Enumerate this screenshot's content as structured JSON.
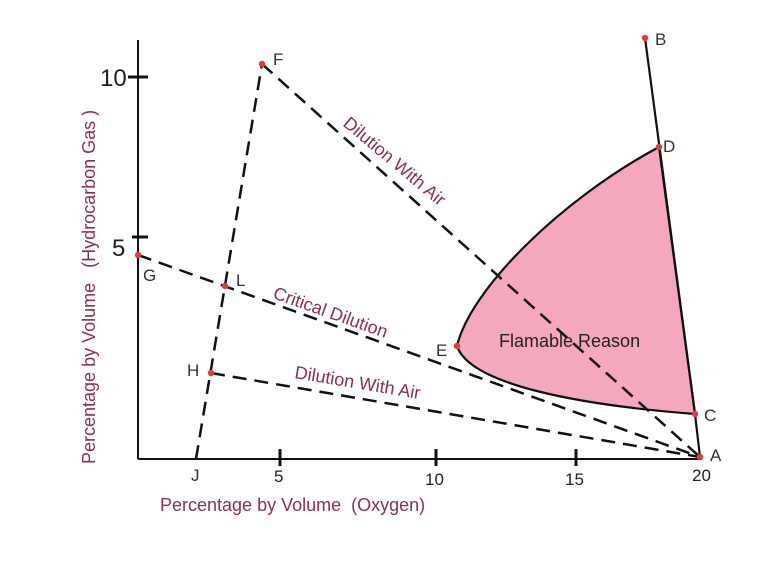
{
  "axes": {
    "x_title": "Percentage by Volume  (Oxygen)",
    "y_title": "Percentage by Volume   (Hydrocarbon Gas )",
    "x_ticks": [
      "5",
      "10",
      "15",
      "20"
    ],
    "y_ticks": [
      "10",
      "5"
    ]
  },
  "points": {
    "A": "A",
    "B": "B",
    "C": "C",
    "D": "D",
    "E": "E",
    "F": "F",
    "G": "G",
    "H": "H",
    "J": "J",
    "L": "L"
  },
  "labels": {
    "dilution_upper": "Dilution With Air",
    "critical": "Critical Dilution",
    "dilution_lower": "Dilution With Air",
    "region": "Flamable Reason"
  },
  "colors": {
    "region_fill": "#f4a7bd",
    "axis_text": "#8e2f4c",
    "point": "#e03a3a"
  }
}
